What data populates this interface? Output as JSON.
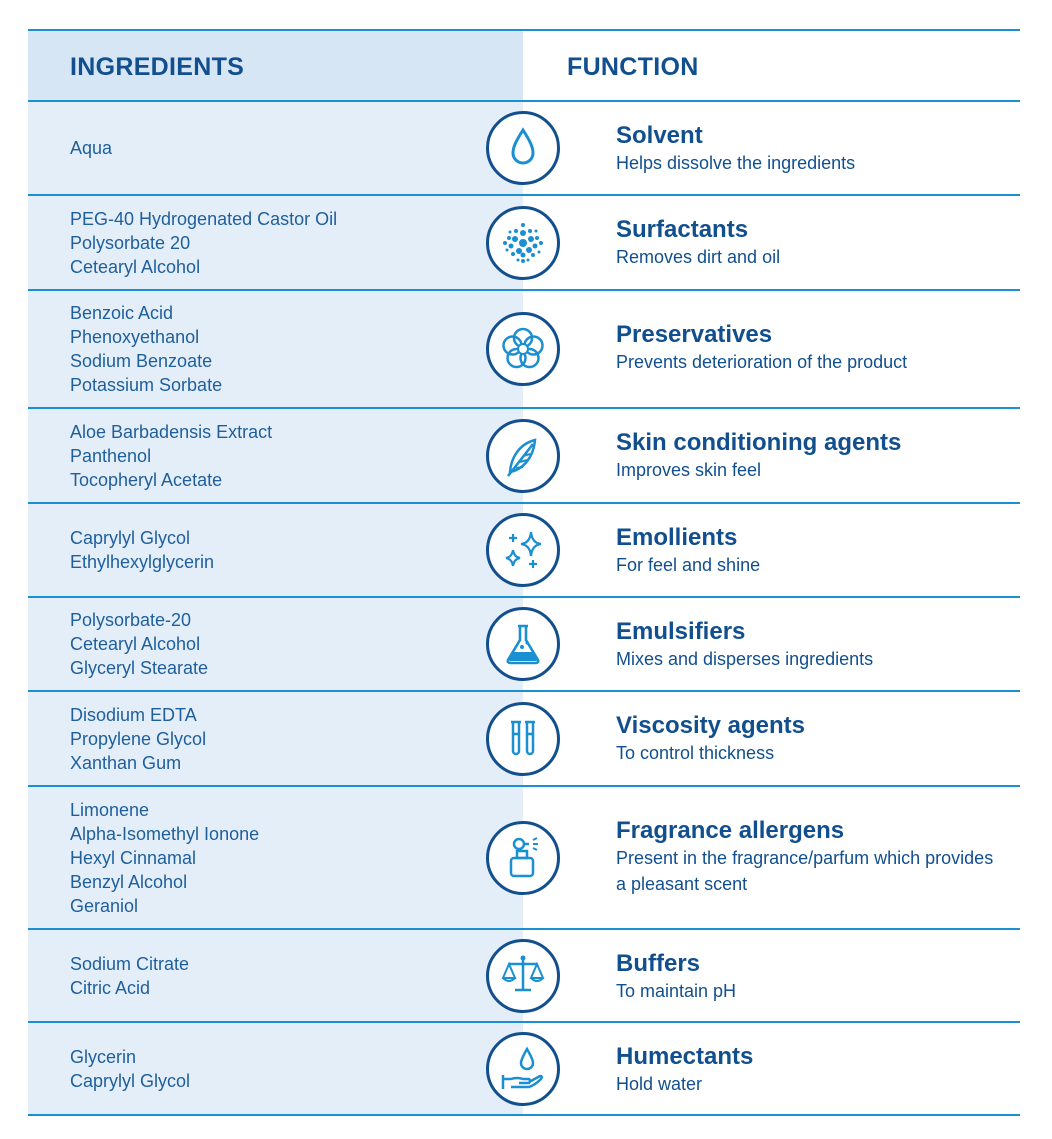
{
  "header": {
    "ingredients": "INGREDIENTS",
    "function": "FUNCTION"
  },
  "rows": [
    {
      "ingredients": [
        "Aqua"
      ],
      "icon": "water-drop-icon",
      "function": "Solvent",
      "description": "Helps dissolve the ingredients"
    },
    {
      "ingredients": [
        "PEG-40 Hydrogenated Castor Oil",
        "Polysorbate 20",
        "Cetearyl Alcohol"
      ],
      "icon": "particles-icon",
      "function": "Surfactants",
      "description": "Removes dirt and oil"
    },
    {
      "ingredients": [
        "Benzoic Acid",
        "Phenoxyethanol",
        "Sodium Benzoate",
        "Potassium Sorbate"
      ],
      "icon": "flower-icon",
      "function": "Preservatives",
      "description": "Prevents deterioration of the product"
    },
    {
      "ingredients": [
        "Aloe Barbadensis Extract",
        "Panthenol",
        "Tocopheryl Acetate"
      ],
      "icon": "feather-icon",
      "function": "Skin conditioning agents",
      "description": "Improves skin feel"
    },
    {
      "ingredients": [
        "Caprylyl Glycol",
        "Ethylhexylglycerin"
      ],
      "icon": "sparkles-icon",
      "function": "Emollients",
      "description": "For feel and shine"
    },
    {
      "ingredients": [
        "Polysorbate-20",
        "Cetearyl Alcohol",
        "Glyceryl Stearate"
      ],
      "icon": "flask-icon",
      "function": "Emulsifiers",
      "description": "Mixes and disperses ingredients"
    },
    {
      "ingredients": [
        "Disodium EDTA",
        "Propylene Glycol",
        "Xanthan Gum"
      ],
      "icon": "test-tubes-icon",
      "function": "Viscosity agents",
      "description": "To control thickness"
    },
    {
      "ingredients": [
        "Limonene",
        "Alpha-Isomethyl Ionone",
        "Hexyl Cinnamal",
        "Benzyl Alcohol",
        "Geraniol"
      ],
      "icon": "perfume-spray-icon",
      "function": "Fragrance allergens",
      "description": "Present in the fragrance/parfum which provides a pleasant scent"
    },
    {
      "ingredients": [
        "Sodium Citrate",
        "Citric Acid"
      ],
      "icon": "balance-scale-icon",
      "function": "Buffers",
      "description": "To maintain pH"
    },
    {
      "ingredients": [
        "Glycerin",
        "Caprylyl Glycol"
      ],
      "icon": "hand-drop-icon",
      "function": "Humectants",
      "description": "Hold water"
    }
  ]
}
